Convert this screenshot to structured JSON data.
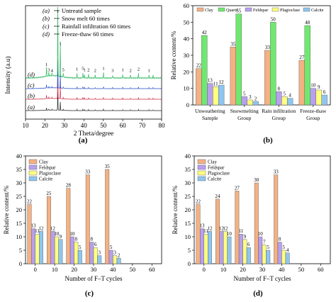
{
  "colors": {
    "clay": "#f4b183",
    "quartz": "#70e870",
    "feldspar": "#b8a0ee",
    "plagioclase": "#ffff80",
    "calcite": "#8fc6f0",
    "xrd_a": "#222222",
    "xrd_b": "#d0304a",
    "xrd_c": "#2c54c8",
    "xrd_d": "#30b860"
  },
  "captions": {
    "a": "(a)",
    "b": "(b)",
    "c": "(c)",
    "d": "(d)"
  },
  "chart_data": [
    {
      "id": "a",
      "type": "line",
      "xlabel": "2 Theta/degree",
      "ylabel": "Intensity (a.u)",
      "xlim": [
        10,
        80
      ],
      "xticks": [
        "10",
        "20",
        "30",
        "40",
        "50",
        "60",
        "70",
        "80"
      ],
      "series": [
        {
          "name": "Untreatd sample",
          "marker": "(a)"
        },
        {
          "name": "Snow melt 60 times",
          "marker": "(b)"
        },
        {
          "name": "Rainfall infiltration 60 times",
          "marker": "(c)"
        },
        {
          "name": "Freeze-thaw 60 times",
          "marker": "(d)"
        }
      ],
      "peaks": [
        {
          "x": 20.8,
          "label": "1",
          "h": 0.12
        },
        {
          "x": 22.0,
          "label": "3",
          "h": 0.05
        },
        {
          "x": 23.6,
          "label": "4",
          "h": 0.04
        },
        {
          "x": 26.6,
          "label": "1",
          "h": 1.0
        },
        {
          "x": 27.9,
          "label": "1",
          "h": 0.45
        },
        {
          "x": 29.4,
          "label": "5",
          "h": 0.05
        },
        {
          "x": 36.5,
          "label": "1",
          "h": 0.06
        },
        {
          "x": 39.5,
          "label": "5",
          "h": 0.07
        },
        {
          "x": 40.3,
          "label": "1",
          "h": 0.05
        },
        {
          "x": 42.4,
          "label": "2",
          "h": 0.05
        },
        {
          "x": 45.8,
          "label": "2",
          "h": 0.04
        },
        {
          "x": 50.1,
          "label": "1",
          "h": 0.07
        },
        {
          "x": 54.8,
          "label": "3",
          "h": 0.04
        },
        {
          "x": 60.0,
          "label": "1",
          "h": 0.05
        },
        {
          "x": 64.0,
          "label": "2",
          "h": 0.04
        },
        {
          "x": 68.1,
          "label": "2",
          "h": 0.06
        },
        {
          "x": 73.5,
          "label": "1",
          "h": 0.04
        },
        {
          "x": 75.6,
          "label": "5",
          "h": 0.04
        }
      ]
    },
    {
      "id": "b",
      "type": "bar",
      "ylabel": "Relative content/%",
      "ylim": [
        0,
        60
      ],
      "yticks": [
        0,
        10,
        20,
        30,
        40,
        50,
        60
      ],
      "legend": "top",
      "categories": [
        [
          "Unweathering",
          "Sample"
        ],
        [
          "Snowmelting",
          "Group"
        ],
        [
          "Rain infiltration",
          "Group"
        ],
        [
          "Freeze-thaw",
          "Group"
        ]
      ],
      "series": [
        {
          "name": "Clay",
          "color_key": "clay",
          "values": [
            22,
            35,
            33,
            27
          ]
        },
        {
          "name": "Quartz",
          "color_key": "quartz",
          "values": [
            42,
            55,
            50,
            48
          ]
        },
        {
          "name": "Feldspar",
          "color_key": "feldspar",
          "values": [
            13,
            5,
            8,
            10
          ]
        },
        {
          "name": "Plagioclase",
          "color_key": "plagioclase",
          "values": [
            11,
            3,
            5,
            9
          ]
        },
        {
          "name": "Calcite",
          "color_key": "calcite",
          "values": [
            12,
            2,
            4,
            6
          ]
        }
      ]
    },
    {
      "id": "c",
      "type": "bar",
      "xlabel": "Number of F–T cycles",
      "ylabel": "Relative content/%",
      "ylim": [
        0,
        40
      ],
      "yticks": [
        0,
        5,
        10,
        15,
        20,
        25,
        30,
        35,
        40
      ],
      "legend": "top-left",
      "categories": [
        "0",
        "10",
        "20",
        "30",
        "40",
        "50",
        "60"
      ],
      "series": [
        {
          "name": "Clay",
          "color_key": "clay",
          "values": [
            22,
            25,
            28,
            33,
            35,
            null,
            null
          ]
        },
        {
          "name": "Feldspar",
          "color_key": "feldspar",
          "values": [
            13,
            12,
            10,
            8,
            5,
            null,
            null
          ]
        },
        {
          "name": "Plagioclase",
          "color_key": "plagioclase",
          "values": [
            11,
            10,
            8,
            6,
            3,
            null,
            null
          ]
        },
        {
          "name": "Calcite",
          "color_key": "calcite",
          "values": [
            12,
            9,
            5,
            3,
            2,
            null,
            null
          ]
        }
      ]
    },
    {
      "id": "d",
      "type": "bar",
      "xlabel": "Number of F–T cycles",
      "ylabel": "Relative content/%",
      "ylim": [
        0,
        40
      ],
      "yticks": [
        0,
        5,
        10,
        15,
        20,
        25,
        30,
        35,
        40
      ],
      "legend": "top-left",
      "categories": [
        "0",
        "10",
        "20",
        "30",
        "40",
        "50",
        "60"
      ],
      "series": [
        {
          "name": "Clay",
          "color_key": "clay",
          "values": [
            22,
            24,
            27,
            30,
            33,
            null,
            null
          ]
        },
        {
          "name": "Feldspar",
          "color_key": "feldspar",
          "values": [
            13,
            12,
            11,
            10,
            8,
            null,
            null
          ]
        },
        {
          "name": "Plagioclase",
          "color_key": "plagioclase",
          "values": [
            11,
            12,
            9,
            7,
            5,
            null,
            null
          ]
        },
        {
          "name": "Calcite",
          "color_key": "calcite",
          "values": [
            12,
            10,
            6,
            5,
            4,
            null,
            null
          ]
        }
      ]
    }
  ]
}
